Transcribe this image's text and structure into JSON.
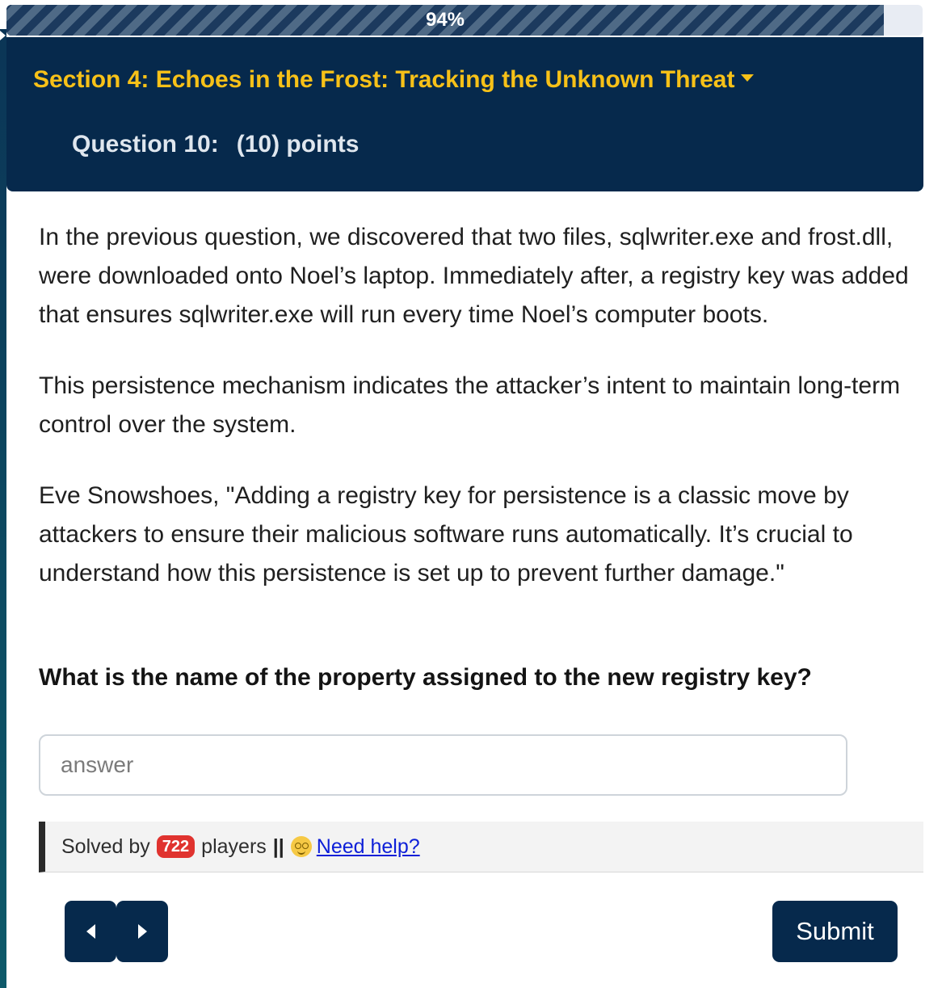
{
  "progress": {
    "label": "94%",
    "percent": 94
  },
  "header": {
    "section_title": "Section 4: Echoes in the Frost: Tracking the Unknown Threat",
    "question_label": "Question 10:",
    "points_label": "(10) points"
  },
  "question": {
    "paragraphs": [
      "In the previous question, we discovered that two files, sqlwriter.exe and frost.dll, were downloaded onto Noel’s laptop. Immediately after, a registry key was added that ensures sqlwriter.exe will run every time Noel’s computer boots.",
      "This persistence mechanism indicates the attacker’s intent to maintain long-term control over the system.",
      "Eve Snowshoes, \"Adding a registry key for persistence is a classic move by attackers to ensure their malicious software runs automatically. It’s crucial to understand how this persistence is set up to prevent further damage.\""
    ],
    "prompt": "What is the name of the property assigned to the new registry key?"
  },
  "answer": {
    "placeholder": "answer",
    "value": ""
  },
  "solved": {
    "prefix": "Solved by",
    "count": "722",
    "suffix": "players",
    "separator": "||",
    "help_label": "Need help?"
  },
  "buttons": {
    "submit_label": "Submit"
  },
  "colors": {
    "header_bg": "#06294c",
    "section_title": "#f7c118",
    "badge": "#e0332f",
    "link": "#0d1fd8"
  },
  "icons": {
    "section_toggle": "caret-down-icon",
    "help": "woozy-face-icon",
    "prev": "arrow-left-icon",
    "next": "arrow-right-icon"
  }
}
